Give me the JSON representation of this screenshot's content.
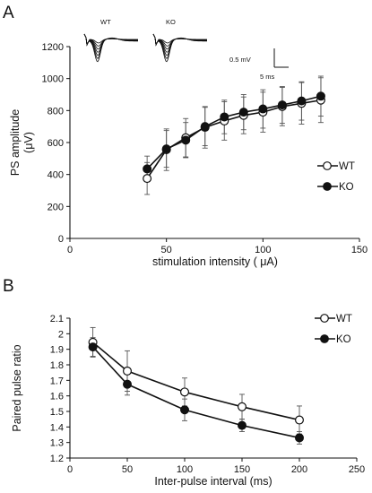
{
  "panels": {
    "a": {
      "letter": "A"
    },
    "b": {
      "letter": "B"
    }
  },
  "inset": {
    "wt_label": "WT",
    "ko_label": "KO",
    "scale_voltage": "0.5 mV",
    "scale_time": "5 ms"
  },
  "chart_data": [
    {
      "type": "line",
      "panel": "A",
      "xlabel": "stimulation intensity ( μA)",
      "ylabel_line1": "PS amplitude",
      "ylabel_line2": "(μV)",
      "xlim": [
        0,
        150
      ],
      "ylim": [
        0,
        1200
      ],
      "xticks": [
        0,
        50,
        100,
        150
      ],
      "yticks": [
        0,
        200,
        400,
        600,
        800,
        1000,
        1200
      ],
      "x": [
        40,
        50,
        60,
        70,
        80,
        90,
        100,
        110,
        120,
        130
      ],
      "series": [
        {
          "name": "WT",
          "marker": "open-circle",
          "values": [
            375,
            555,
            630,
            695,
            735,
            770,
            790,
            825,
            845,
            865
          ],
          "errors": [
            100,
            130,
            120,
            130,
            120,
            115,
            125,
            120,
            130,
            140
          ]
        },
        {
          "name": "KO",
          "marker": "filled-circle",
          "values": [
            435,
            560,
            615,
            700,
            760,
            790,
            810,
            835,
            860,
            890
          ],
          "errors": [
            80,
            115,
            110,
            120,
            105,
            110,
            120,
            115,
            120,
            125
          ]
        }
      ],
      "legend_position": "right",
      "grid": false
    },
    {
      "type": "line",
      "panel": "B",
      "xlabel": "Inter-pulse interval (ms)",
      "ylabel": "Paired pulse ratio",
      "xlim": [
        0,
        250
      ],
      "ylim": [
        1.2,
        2.1
      ],
      "xticks": [
        0,
        50,
        100,
        150,
        200,
        250
      ],
      "yticks": [
        "1.2",
        "1.3",
        "1.4",
        "1.5",
        "1.6",
        "1.7",
        "1.8",
        "1.9",
        "2",
        "2.1"
      ],
      "x": [
        20,
        50,
        100,
        150,
        200
      ],
      "series": [
        {
          "name": "WT",
          "marker": "open-circle",
          "values": [
            1.945,
            1.76,
            1.625,
            1.53,
            1.445
          ],
          "errors": [
            0.095,
            0.13,
            0.09,
            0.08,
            0.09
          ]
        },
        {
          "name": "KO",
          "marker": "filled-circle",
          "values": [
            1.915,
            1.675,
            1.51,
            1.41,
            1.33
          ],
          "errors": [
            0.06,
            0.07,
            0.07,
            0.04,
            0.04
          ]
        }
      ],
      "legend_position": "top-right",
      "grid": false
    }
  ]
}
